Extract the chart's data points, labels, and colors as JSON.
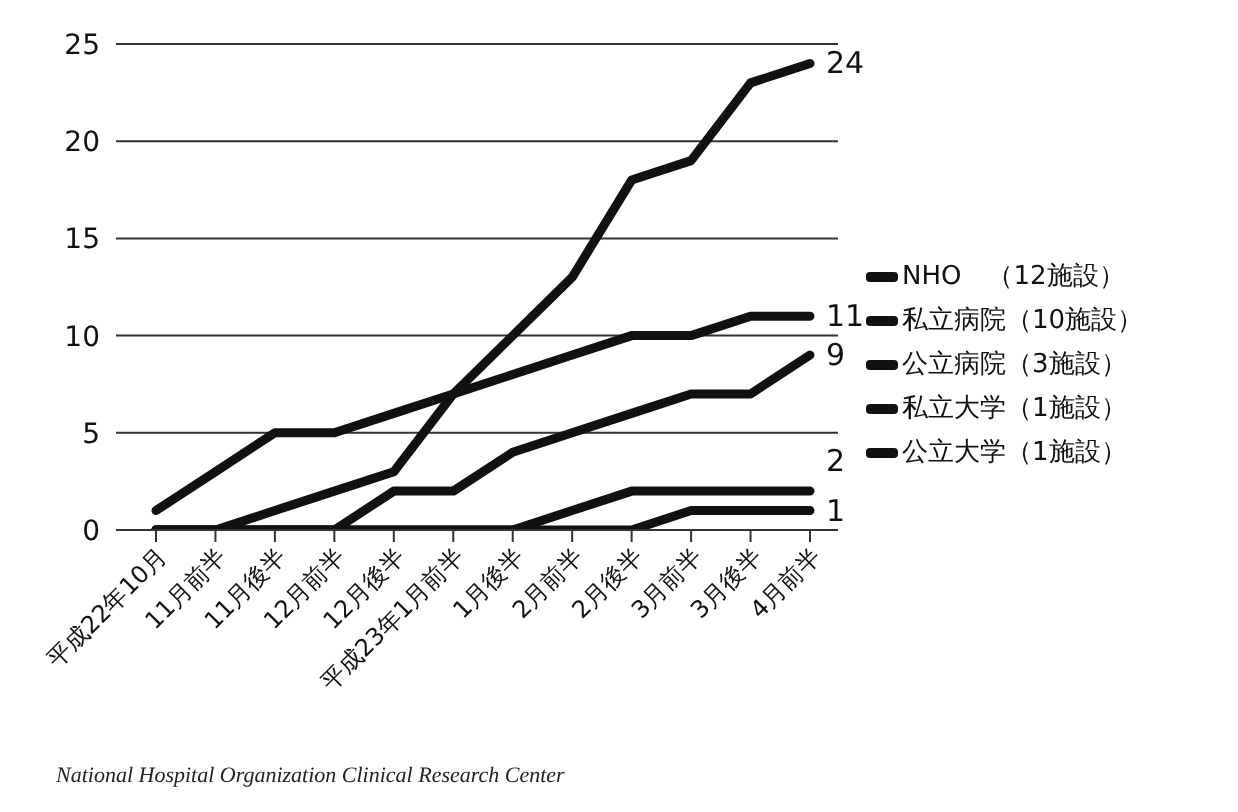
{
  "chart_data": {
    "type": "line",
    "categories": [
      "平成22年10月",
      "11月前半",
      "11月後半",
      "12月前半",
      "12月後半",
      "平成23年1月前半",
      "1月後半",
      "2月前半",
      "2月後半",
      "3月前半",
      "3月後半",
      "4月前半"
    ],
    "series": [
      {
        "name": "NHO　（12施設）",
        "color": "#111111",
        "values": [
          0,
          0,
          1,
          2,
          3,
          7,
          10,
          13,
          18,
          19,
          23,
          24
        ],
        "value_labels": [
          null,
          null,
          null,
          null,
          null,
          null,
          null,
          null,
          null,
          null,
          null,
          "24"
        ]
      },
      {
        "name": "私立病院（10施設）",
        "color": "#111111",
        "values": [
          1,
          3,
          5,
          5,
          6,
          7,
          8,
          9,
          10,
          10,
          11,
          11
        ],
        "value_labels": [
          null,
          null,
          null,
          null,
          null,
          null,
          null,
          null,
          null,
          null,
          null,
          "11"
        ]
      },
      {
        "name": "公立病院（3施設）",
        "color": "#111111",
        "values": [
          0,
          0,
          0,
          0,
          2,
          2,
          4,
          5,
          6,
          7,
          7,
          9
        ],
        "value_labels": [
          null,
          null,
          null,
          null,
          null,
          null,
          null,
          null,
          null,
          null,
          null,
          "9"
        ]
      },
      {
        "name": "私立大学（1施設）",
        "color": "#111111",
        "values": [
          0,
          0,
          0,
          0,
          0,
          0,
          0,
          1,
          2,
          2,
          2,
          2
        ],
        "value_labels": [
          null,
          null,
          null,
          null,
          null,
          null,
          null,
          null,
          null,
          null,
          null,
          "2"
        ]
      },
      {
        "name": "公立大学（1施設）",
        "color": "#111111",
        "values": [
          0,
          0,
          0,
          0,
          0,
          0,
          0,
          0,
          0,
          1,
          1,
          1
        ],
        "value_labels": [
          null,
          null,
          null,
          null,
          null,
          null,
          null,
          null,
          null,
          null,
          null,
          "1"
        ]
      }
    ],
    "ylim": [
      0,
      25
    ],
    "yticks": [
      0,
      5,
      10,
      15,
      20,
      25
    ],
    "grid": "y",
    "legend": "right",
    "marker": "none",
    "line_style": "solid",
    "annotations": [
      "National Hospital Organization Clinical Research Center"
    ]
  }
}
